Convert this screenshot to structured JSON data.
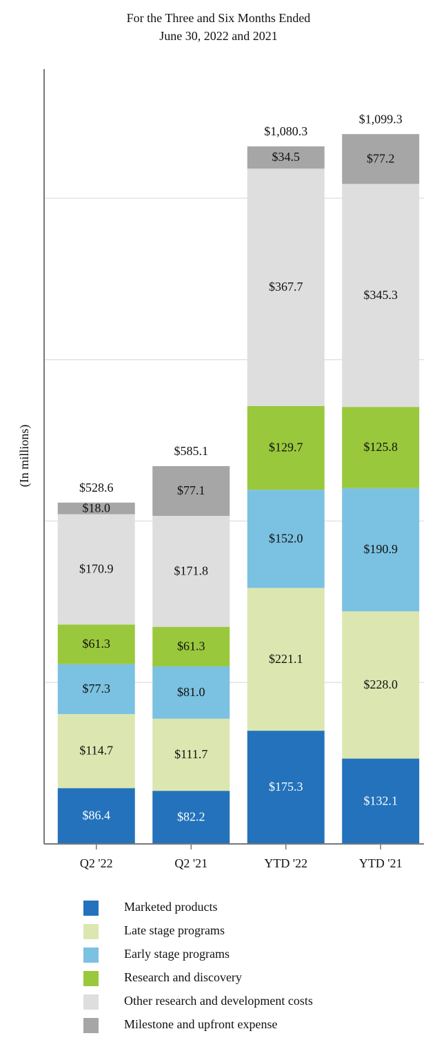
{
  "chart_data": {
    "type": "stacked_bar",
    "title": "For the Three and Six Months Ended",
    "subtitle": "June 30, 2022 and 2021",
    "y_label": "(In millions)",
    "categories": [
      "Q2 '22",
      "Q2 '21",
      "YTD '22",
      "YTD '21"
    ],
    "series": [
      {
        "name": "Marketed products",
        "color": "#2372bb",
        "values": [
          86.4,
          82.2,
          175.3,
          132.1
        ],
        "value_labels": [
          "$86.4",
          "$82.2",
          "$175.3",
          "$132.1"
        ]
      },
      {
        "name": "Late stage programs",
        "color": "#dce6b0",
        "values": [
          114.7,
          111.7,
          221.1,
          228.0
        ],
        "value_labels": [
          "$114.7",
          "$111.7",
          "$221.1",
          "$228.0"
        ]
      },
      {
        "name": "Early stage programs",
        "color": "#7bc1e1",
        "values": [
          77.3,
          81.0,
          152.0,
          190.9
        ],
        "value_labels": [
          "$77.3",
          "$81.0",
          "$152.0",
          "$190.9"
        ]
      },
      {
        "name": "Research and discovery",
        "color": "#9ac83c",
        "values": [
          61.3,
          61.3,
          129.7,
          125.8
        ],
        "value_labels": [
          "$61.3",
          "$61.3",
          "$129.7",
          "$125.8"
        ]
      },
      {
        "name": "Other research and development costs",
        "color": "#dedede",
        "values": [
          170.9,
          171.8,
          367.7,
          345.3
        ],
        "value_labels": [
          "$170.9",
          "$171.8",
          "$367.7",
          "$345.3"
        ]
      },
      {
        "name": "Milestone and upfront expense",
        "color": "#a6a6a6",
        "values": [
          18.0,
          77.1,
          34.5,
          77.2
        ],
        "value_labels": [
          "$18.0",
          "$77.1",
          "$34.5",
          "$77.2"
        ]
      }
    ],
    "totals": [
      528.6,
      585.1,
      1080.3,
      1099.3
    ],
    "total_labels": [
      "$528.6",
      "$585.1",
      "$1,080.3",
      "$1,099.3"
    ],
    "ylim": [
      0,
      1200
    ],
    "yticks": [
      250,
      500,
      750,
      1000
    ],
    "grid": true
  }
}
